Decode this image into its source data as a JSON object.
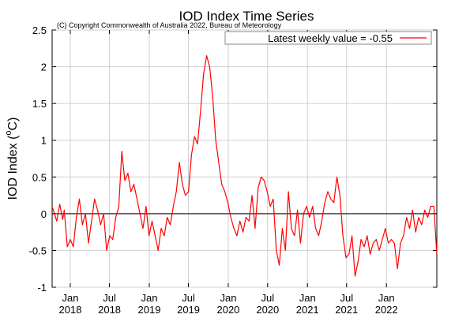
{
  "chart_data": {
    "type": "line",
    "title": "IOD Index Time Series",
    "subtitle": "(C) Copyright Commonwealth of Australia 2022, Bureau of Meteorology",
    "ylabel": "IOD Index (°C)",
    "ylabel_main": "IOD Index (",
    "ylabel_sup": "o",
    "ylabel_unit": "C)",
    "xlabel": "",
    "ylim": [
      -1,
      2.5
    ],
    "xlim": [
      "2017-10-09",
      "2022-08-22"
    ],
    "yticks": [
      -1,
      -0.5,
      0,
      0.5,
      1,
      1.5,
      2,
      2.5
    ],
    "ytick_labels": [
      "-1",
      "-0.5",
      "0",
      "0.5",
      "1",
      "1.5",
      "2",
      "2.5"
    ],
    "xticks": [
      {
        "date": "2018-01-01",
        "month": "Jan",
        "year": "2018"
      },
      {
        "date": "2018-07-01",
        "month": "Jul",
        "year": "2018"
      },
      {
        "date": "2019-01-01",
        "month": "Jan",
        "year": "2019"
      },
      {
        "date": "2019-07-01",
        "month": "Jul",
        "year": "2019"
      },
      {
        "date": "2020-01-01",
        "month": "Jan",
        "year": "2020"
      },
      {
        "date": "2020-07-01",
        "month": "Jul",
        "year": "2020"
      },
      {
        "date": "2021-01-01",
        "month": "Jan",
        "year": "2021"
      },
      {
        "date": "2021-07-01",
        "month": "Jul",
        "year": "2021"
      },
      {
        "date": "2022-01-01",
        "month": "Jan",
        "year": "2022"
      }
    ],
    "grid": true,
    "legend_position": "top-right",
    "series": [
      {
        "name": "Latest weekly value = -0.55",
        "color": "#ff0000",
        "x": [
          "2017-10-09",
          "2017-10-30",
          "2017-11-13",
          "2017-11-27",
          "2017-12-04",
          "2017-12-18",
          "2018-01-01",
          "2018-01-15",
          "2018-01-29",
          "2018-02-12",
          "2018-02-26",
          "2018-03-12",
          "2018-03-26",
          "2018-04-09",
          "2018-04-23",
          "2018-05-07",
          "2018-05-21",
          "2018-06-04",
          "2018-06-18",
          "2018-07-02",
          "2018-07-16",
          "2018-07-30",
          "2018-08-13",
          "2018-08-27",
          "2018-09-10",
          "2018-09-24",
          "2018-10-08",
          "2018-10-22",
          "2018-11-05",
          "2018-11-19",
          "2018-12-03",
          "2018-12-17",
          "2018-12-31",
          "2019-01-14",
          "2019-01-28",
          "2019-02-11",
          "2019-02-25",
          "2019-03-11",
          "2019-03-25",
          "2019-04-08",
          "2019-04-22",
          "2019-05-06",
          "2019-05-20",
          "2019-06-03",
          "2019-06-17",
          "2019-07-01",
          "2019-07-15",
          "2019-07-29",
          "2019-08-12",
          "2019-08-26",
          "2019-09-09",
          "2019-09-23",
          "2019-10-07",
          "2019-10-21",
          "2019-11-04",
          "2019-11-18",
          "2019-12-02",
          "2019-12-16",
          "2019-12-30",
          "2020-01-13",
          "2020-01-27",
          "2020-02-10",
          "2020-02-24",
          "2020-03-09",
          "2020-03-23",
          "2020-04-06",
          "2020-04-20",
          "2020-05-04",
          "2020-05-18",
          "2020-06-01",
          "2020-06-15",
          "2020-06-29",
          "2020-07-13",
          "2020-07-27",
          "2020-08-10",
          "2020-08-24",
          "2020-09-07",
          "2020-09-21",
          "2020-10-05",
          "2020-10-19",
          "2020-11-02",
          "2020-11-16",
          "2020-11-30",
          "2020-12-14",
          "2020-12-28",
          "2021-01-11",
          "2021-01-25",
          "2021-02-08",
          "2021-02-22",
          "2021-03-08",
          "2021-03-22",
          "2021-04-05",
          "2021-04-19",
          "2021-05-03",
          "2021-05-17",
          "2021-05-31",
          "2021-06-14",
          "2021-06-28",
          "2021-07-12",
          "2021-07-26",
          "2021-08-09",
          "2021-08-23",
          "2021-09-06",
          "2021-09-20",
          "2021-10-04",
          "2021-10-18",
          "2021-11-01",
          "2021-11-15",
          "2021-11-29",
          "2021-12-13",
          "2021-12-27",
          "2022-01-10",
          "2022-01-24",
          "2022-02-07",
          "2022-02-21",
          "2022-03-07",
          "2022-03-21",
          "2022-04-04",
          "2022-04-18",
          "2022-05-02",
          "2022-05-16",
          "2022-05-30",
          "2022-06-13",
          "2022-06-27",
          "2022-07-11",
          "2022-07-25",
          "2022-08-08",
          "2022-08-22"
        ],
        "y": [
          0.1,
          -0.1,
          0.13,
          -0.08,
          0.05,
          -0.45,
          -0.35,
          -0.45,
          -0.05,
          0.2,
          -0.15,
          0.0,
          -0.4,
          -0.1,
          0.2,
          0.05,
          -0.15,
          0.0,
          -0.5,
          -0.3,
          -0.35,
          -0.05,
          0.1,
          0.85,
          0.45,
          0.55,
          0.3,
          0.4,
          0.2,
          0.0,
          -0.2,
          0.1,
          -0.3,
          -0.1,
          -0.3,
          -0.5,
          -0.2,
          -0.3,
          -0.05,
          -0.15,
          0.1,
          0.3,
          0.7,
          0.4,
          0.25,
          0.3,
          0.8,
          1.05,
          0.95,
          1.4,
          1.9,
          2.15,
          2.0,
          1.6,
          1.0,
          0.7,
          0.4,
          0.3,
          0.15,
          -0.05,
          -0.2,
          -0.3,
          -0.1,
          -0.25,
          -0.05,
          -0.1,
          0.25,
          -0.2,
          0.35,
          0.5,
          0.45,
          0.3,
          0.1,
          0.2,
          -0.5,
          -0.7,
          -0.2,
          -0.5,
          0.3,
          -0.2,
          -0.3,
          0.05,
          -0.4,
          0.0,
          0.1,
          -0.05,
          0.1,
          -0.2,
          -0.3,
          -0.1,
          0.15,
          0.3,
          0.2,
          0.15,
          0.5,
          0.25,
          -0.3,
          -0.6,
          -0.55,
          -0.3,
          -0.85,
          -0.65,
          -0.35,
          -0.45,
          -0.3,
          -0.55,
          -0.4,
          -0.35,
          -0.5,
          -0.35,
          -0.2,
          -0.4,
          -0.35,
          -0.4,
          -0.75,
          -0.4,
          -0.3,
          -0.05,
          -0.2,
          0.05,
          -0.25,
          -0.05,
          -0.15,
          0.05,
          -0.05,
          0.1,
          0.1,
          -0.55
        ]
      }
    ]
  }
}
